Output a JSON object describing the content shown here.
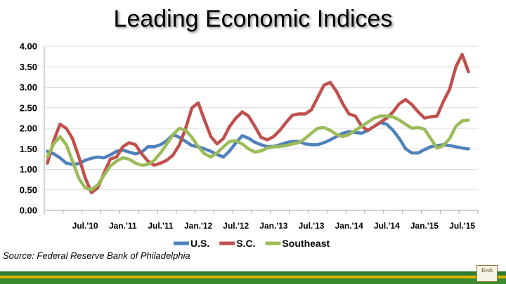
{
  "title": "Leading Economic Indices",
  "source": "Source: Federal Reserve Bank of Philadelphia",
  "chart_data": {
    "type": "line",
    "title": "Leading Economic Indices",
    "ylim": [
      0,
      4
    ],
    "yticks": [
      "0.00",
      "0.50",
      "1.00",
      "1.50",
      "2.00",
      "2.50",
      "3.00",
      "3.50",
      "4.00"
    ],
    "ytick_values": [
      0,
      0.5,
      1,
      1.5,
      2,
      2.5,
      3,
      3.5,
      4
    ],
    "x_tick_labels": [
      "Jul.'10",
      "Jan.'11",
      "Jul.'11",
      "Jan.'12",
      "Jul.'12",
      "Jan.'13",
      "Jul.'13",
      "Jan.'14",
      "Jul.'14",
      "Jan.'15",
      "Jul.'15"
    ],
    "x_tick_month_index": [
      6,
      12,
      18,
      24,
      30,
      36,
      42,
      48,
      54,
      60,
      66
    ],
    "x_months": 69,
    "grid": true,
    "legend_position": "bottom",
    "series": [
      {
        "name": "U.S.",
        "color": "#4f81bd",
        "values": [
          1.44,
          1.38,
          1.28,
          1.15,
          1.12,
          1.14,
          1.22,
          1.27,
          1.3,
          1.28,
          1.35,
          1.44,
          1.47,
          1.42,
          1.38,
          1.42,
          1.55,
          1.55,
          1.6,
          1.7,
          1.85,
          1.78,
          1.68,
          1.58,
          1.55,
          1.5,
          1.44,
          1.36,
          1.3,
          1.45,
          1.65,
          1.82,
          1.76,
          1.66,
          1.6,
          1.55,
          1.56,
          1.6,
          1.65,
          1.68,
          1.68,
          1.62,
          1.6,
          1.6,
          1.65,
          1.72,
          1.8,
          1.88,
          1.92,
          1.9,
          1.88,
          1.95,
          2.05,
          2.14,
          2.1,
          1.95,
          1.75,
          1.5,
          1.4,
          1.4,
          1.48,
          1.55,
          1.58,
          1.6,
          1.58,
          1.55,
          1.52,
          1.5
        ]
      },
      {
        "name": "S.C.",
        "color": "#c0504d",
        "values": [
          1.15,
          1.7,
          2.1,
          2.0,
          1.75,
          1.3,
          0.8,
          0.43,
          0.55,
          0.9,
          1.25,
          1.3,
          1.55,
          1.65,
          1.6,
          1.38,
          1.2,
          1.1,
          1.15,
          1.22,
          1.35,
          1.6,
          2.0,
          2.5,
          2.62,
          2.2,
          1.8,
          1.62,
          1.75,
          2.05,
          2.25,
          2.4,
          2.3,
          2.05,
          1.78,
          1.72,
          1.8,
          1.95,
          2.15,
          2.32,
          2.35,
          2.35,
          2.45,
          2.75,
          3.05,
          3.12,
          2.9,
          2.6,
          2.35,
          2.3,
          2.05,
          1.95,
          2.05,
          2.15,
          2.25,
          2.4,
          2.6,
          2.7,
          2.58,
          2.4,
          2.25,
          2.28,
          2.3,
          2.65,
          2.95,
          3.5,
          3.8,
          3.38
        ]
      },
      {
        "name": "Southeast",
        "color": "#9bbb59",
        "values": [
          1.3,
          1.62,
          1.8,
          1.6,
          1.2,
          0.78,
          0.55,
          0.5,
          0.62,
          0.85,
          1.08,
          1.2,
          1.28,
          1.25,
          1.15,
          1.1,
          1.12,
          1.22,
          1.4,
          1.62,
          1.85,
          2.0,
          1.95,
          1.78,
          1.55,
          1.38,
          1.3,
          1.4,
          1.55,
          1.68,
          1.7,
          1.62,
          1.5,
          1.42,
          1.45,
          1.52,
          1.55,
          1.56,
          1.58,
          1.62,
          1.65,
          1.75,
          1.88,
          2.0,
          2.02,
          1.95,
          1.85,
          1.8,
          1.85,
          1.95,
          2.05,
          2.15,
          2.25,
          2.3,
          2.3,
          2.28,
          2.2,
          2.1,
          2.0,
          2.02,
          1.98,
          1.75,
          1.52,
          1.58,
          1.75,
          2.05,
          2.18,
          2.2
        ]
      }
    ]
  },
  "footer": {
    "logo_text": "Resh"
  }
}
